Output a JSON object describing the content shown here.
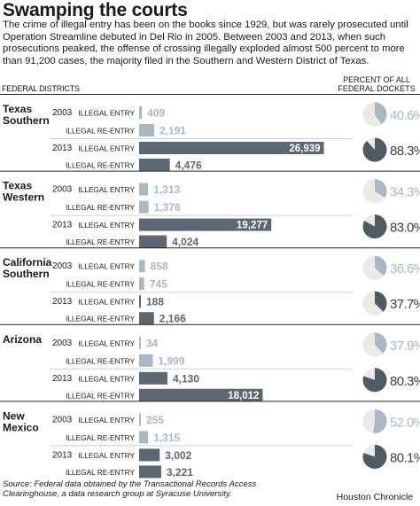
{
  "title": "Swamping the courts",
  "intro": "The crime of illegal entry has been on the books since 1929, but was rarely prosecuted until Operation Streamline debuted in Del Rio in 2005. Between 2003 and 2013, when such prosecutions peaked, the offense of crossing illegally exploded almost 500 percent to more than 91,200 cases, the majority filed in the Southern and Western District of Texas.",
  "header_left": "FEDERAL DISTRICTS",
  "header_right": "PERCENT OF ALL FEDERAL DOCKETS",
  "source": "Source: Federal data obtained by the Transactional Records Access Clearinghouse, a data research group at Syracuse University.",
  "credit": "Houston Chronicle",
  "colors": {
    "bar_2003": "#a8b8c4",
    "bar_2013": "#5b6873",
    "pie_bg": "#ede9e4",
    "pie_2003": "#a8b8c4",
    "pie_2013": "#4e5b65",
    "pct_2003": "#a8b8c4",
    "pct_2013": "#3a3f44"
  },
  "chart_data": {
    "type": "bar",
    "orientation": "horizontal",
    "xlim": [
      0,
      27000
    ],
    "districts": [
      {
        "name": "Texas Southern",
        "years": [
          {
            "year": "2003",
            "percent": 40.6,
            "percent_label": "40.6%",
            "bars": [
              {
                "label": "ILLEGAL ENTRY",
                "value": 409,
                "value_label": "409"
              },
              {
                "label": "ILLEGAL RE-ENTRY",
                "value": 2191,
                "value_label": "2,191"
              }
            ]
          },
          {
            "year": "2013",
            "percent": 88.3,
            "percent_label": "88.3%",
            "bars": [
              {
                "label": "ILLEGAL ENTRY",
                "value": 26939,
                "value_label": "26,939"
              },
              {
                "label": "ILLEGAL RE-ENTRY",
                "value": 4476,
                "value_label": "4,476"
              }
            ]
          }
        ]
      },
      {
        "name": "Texas Western",
        "years": [
          {
            "year": "2003",
            "percent": 34.3,
            "percent_label": "34.3%",
            "bars": [
              {
                "label": "ILLEGAL ENTRY",
                "value": 1313,
                "value_label": "1,313"
              },
              {
                "label": "ILLEGAL RE-ENTRY",
                "value": 1376,
                "value_label": "1,376"
              }
            ]
          },
          {
            "year": "2013",
            "percent": 83.0,
            "percent_label": "83.0%",
            "bars": [
              {
                "label": "ILLEGAL ENTRY",
                "value": 19277,
                "value_label": "19,277"
              },
              {
                "label": "ILLEGAL RE-ENTRY",
                "value": 4024,
                "value_label": "4,024"
              }
            ]
          }
        ]
      },
      {
        "name": "California Southern",
        "years": [
          {
            "year": "2003",
            "percent": 36.6,
            "percent_label": "36.6%",
            "bars": [
              {
                "label": "ILLEGAL ENTRY",
                "value": 858,
                "value_label": "858"
              },
              {
                "label": "ILLEGAL RE-ENTRY",
                "value": 745,
                "value_label": "745"
              }
            ]
          },
          {
            "year": "2013",
            "percent": 37.7,
            "percent_label": "37.7%",
            "bars": [
              {
                "label": "ILLEGAL ENTRY",
                "value": 188,
                "value_label": "188"
              },
              {
                "label": "ILLEGAL RE-ENTRY",
                "value": 2166,
                "value_label": "2,166"
              }
            ]
          }
        ]
      },
      {
        "name": "Arizona",
        "years": [
          {
            "year": "2003",
            "percent": 37.9,
            "percent_label": "37.9%",
            "bars": [
              {
                "label": "ILLEGAL ENTRY",
                "value": 34,
                "value_label": "34"
              },
              {
                "label": "ILLEGAL RE-ENTRY",
                "value": 1999,
                "value_label": "1,999"
              }
            ]
          },
          {
            "year": "2013",
            "percent": 80.3,
            "percent_label": "80.3%",
            "bars": [
              {
                "label": "ILLEGAL ENTRY",
                "value": 4130,
                "value_label": "4,130"
              },
              {
                "label": "ILLEGAL RE-ENTRY",
                "value": 18012,
                "value_label": "18,012"
              }
            ]
          }
        ]
      },
      {
        "name": "New Mexico",
        "years": [
          {
            "year": "2003",
            "percent": 52.0,
            "percent_label": "52.0%",
            "bars": [
              {
                "label": "ILLEGAL ENTRY",
                "value": 255,
                "value_label": "255"
              },
              {
                "label": "ILLEGAL RE-ENTRY",
                "value": 1315,
                "value_label": "1,315"
              }
            ]
          },
          {
            "year": "2013",
            "percent": 80.1,
            "percent_label": "80.1%",
            "bars": [
              {
                "label": "ILLEGAL ENTRY",
                "value": 3002,
                "value_label": "3,002"
              },
              {
                "label": "ILLEGAL RE-ENTRY",
                "value": 3221,
                "value_label": "3,221"
              }
            ]
          }
        ]
      }
    ]
  }
}
